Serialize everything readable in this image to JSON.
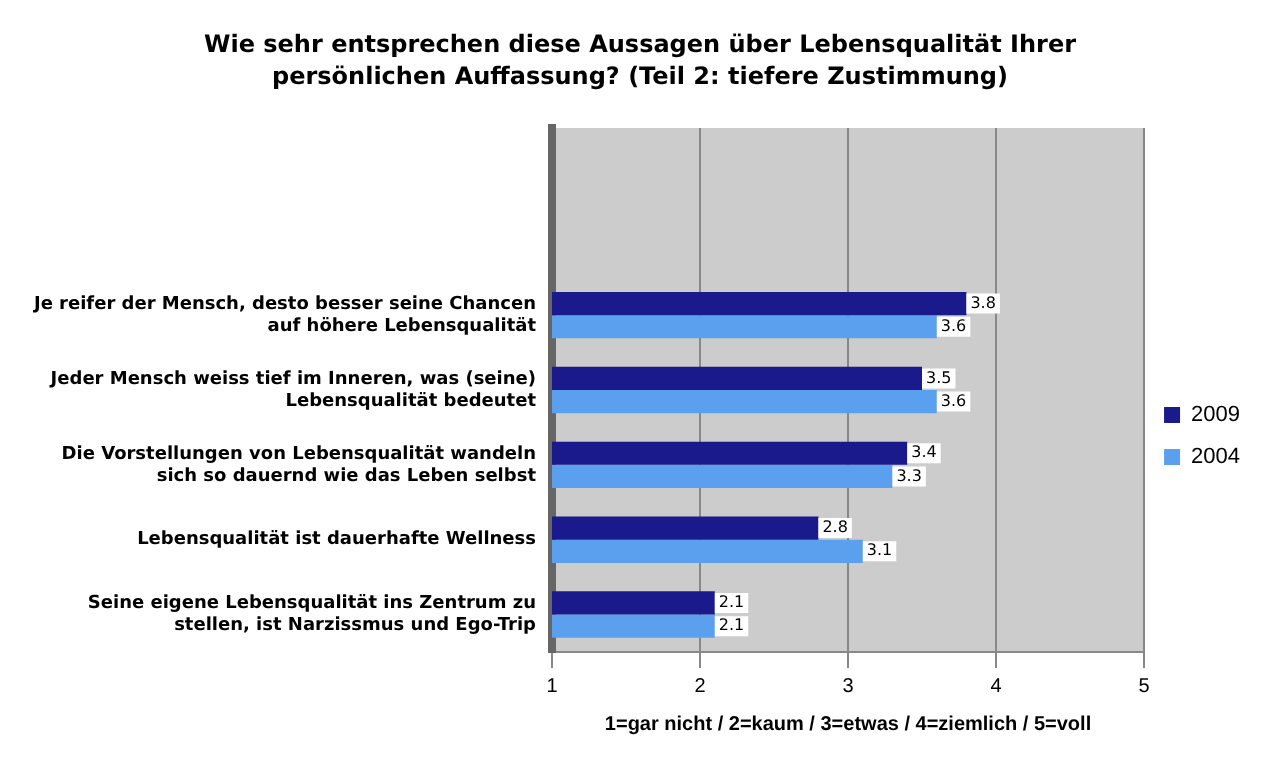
{
  "chart_data": {
    "type": "bar",
    "orientation": "horizontal",
    "title": "Wie sehr entsprechen diese Aussagen über Lebensqualität Ihrer persönlichen Auffassung? (Teil 2: tiefere Zustimmung)",
    "xlabel": "1=gar nicht / 2=kaum / 3=etwas / 4=ziemlich / 5=voll",
    "categories": [
      null,
      null,
      "Je reifer der Mensch, desto besser seine Chancen auf höhere Lebensqualität",
      "Jeder Mensch weiss tief im Inneren, was (seine) Lebensqualität bedeutet",
      "Die Vorstellungen von Lebensqualität wandeln sich so dauernd wie das Leben selbst",
      "Lebensqualität ist dauerhafte Wellness",
      "Seine eigene Lebensqualität ins Zentrum zu stellen, ist Narzissmus und Ego-Trip"
    ],
    "series": [
      {
        "name": "2009",
        "color": "#1a1a8c",
        "values": [
          null,
          null,
          3.8,
          3.5,
          3.4,
          2.8,
          2.1
        ]
      },
      {
        "name": "2004",
        "color": "#5aa0ee",
        "values": [
          null,
          null,
          3.6,
          3.6,
          3.3,
          3.1,
          2.1
        ]
      }
    ],
    "xlim": [
      1,
      5
    ],
    "xticks": [
      1,
      2,
      3,
      4,
      5
    ],
    "grid": "x",
    "legend": "right",
    "data_labels": true
  }
}
